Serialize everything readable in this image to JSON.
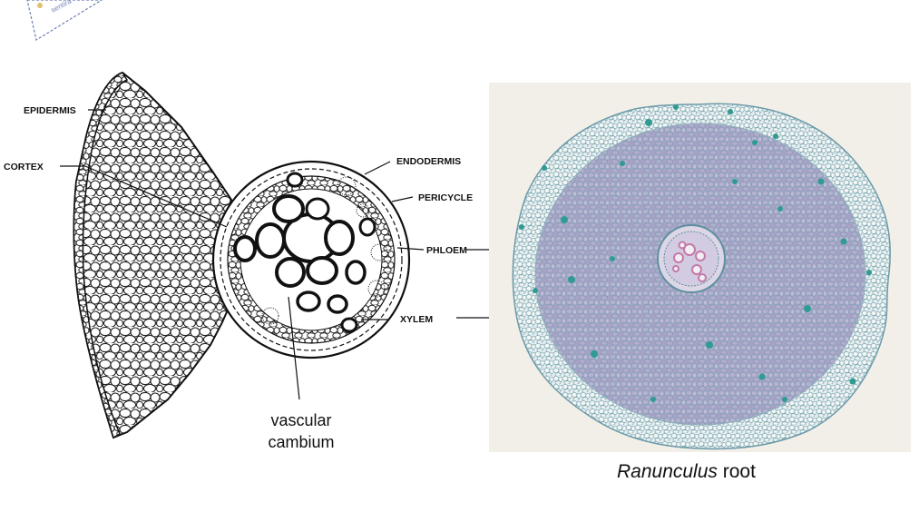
{
  "diagram": {
    "labels": {
      "epidermis": "EPIDERMIS",
      "cortex": "CORTEX",
      "endodermis": "ENDODERMIS",
      "pericycle": "PERICYCLE",
      "phloem": "PHLOEM",
      "xylem": "XYLEM"
    },
    "vascular_cambium": [
      "vascular",
      "cambium"
    ]
  },
  "photo": {
    "caption_genus": "Ranunculus",
    "caption_rest": " root",
    "colors": {
      "background": "#f2efe9",
      "cell_wall": "#8fb8b4",
      "stain": "#2f9b93",
      "cell_fill": "#a9a2c6"
    }
  },
  "logo": {
    "text": "sentira"
  }
}
